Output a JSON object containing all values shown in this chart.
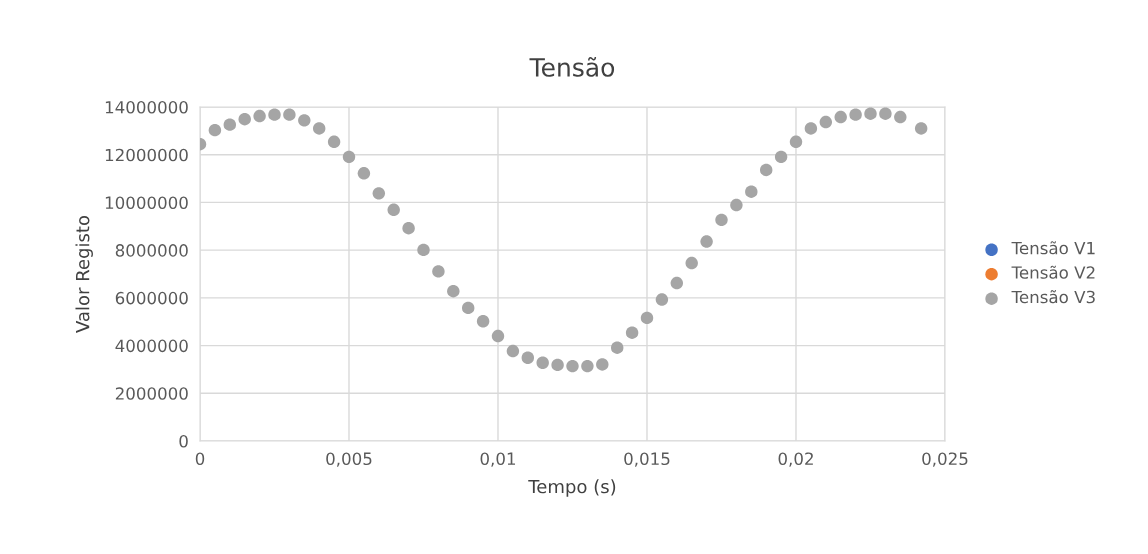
{
  "chart_data": {
    "type": "scatter",
    "title": "Tensão",
    "xlabel": "Tempo (s)",
    "ylabel": "Valor Registo",
    "x": [
      0,
      0.0005,
      0.001,
      0.0015,
      0.002,
      0.0025,
      0.003,
      0.0035,
      0.004,
      0.0045,
      0.005,
      0.0055,
      0.006,
      0.0065,
      0.007,
      0.0075,
      0.008,
      0.0085,
      0.009,
      0.0095,
      0.01,
      0.0105,
      0.011,
      0.0115,
      0.012,
      0.0125,
      0.013,
      0.0135,
      0.014,
      0.0145,
      0.015,
      0.0155,
      0.016,
      0.0165,
      0.017,
      0.0175,
      0.018,
      0.0185,
      0.019,
      0.0195,
      0.02,
      0.0205,
      0.021,
      0.0215,
      0.022,
      0.0225,
      0.023,
      0.0235,
      0.0242
    ],
    "series": [
      {
        "name": "Tensão V1",
        "color": "#4472c4",
        "values": [
          null,
          null,
          null,
          null,
          null,
          null,
          null,
          null,
          null,
          null,
          null,
          null,
          null,
          null,
          null,
          null,
          null,
          null,
          null,
          null,
          null,
          null,
          null,
          null,
          null,
          null,
          null,
          null,
          null,
          null,
          null,
          null,
          null,
          null,
          null,
          null,
          null,
          null,
          null,
          null,
          null,
          null,
          null,
          null,
          null,
          null,
          null,
          null,
          null
        ]
      },
      {
        "name": "Tensão V2",
        "color": "#ed7d31",
        "values": [
          null,
          null,
          null,
          null,
          null,
          null,
          null,
          null,
          null,
          null,
          null,
          null,
          null,
          null,
          null,
          null,
          null,
          null,
          null,
          null,
          null,
          null,
          null,
          null,
          null,
          null,
          null,
          null,
          null,
          null,
          null,
          null,
          null,
          null,
          null,
          null,
          null,
          null,
          null,
          null,
          null,
          null,
          null,
          null,
          null,
          null,
          null,
          null,
          null
        ]
      },
      {
        "name": "Tensão V3",
        "color": "#a5a5a5",
        "values": [
          12440000,
          13030000,
          13260000,
          13490000,
          13620000,
          13680000,
          13680000,
          13440000,
          13100000,
          12540000,
          11910000,
          11220000,
          10380000,
          9690000,
          8920000,
          8010000,
          7110000,
          6280000,
          5580000,
          5020000,
          4400000,
          3770000,
          3490000,
          3280000,
          3190000,
          3140000,
          3140000,
          3210000,
          3910000,
          4540000,
          5160000,
          5930000,
          6620000,
          7460000,
          8360000,
          9270000,
          9890000,
          10450000,
          11360000,
          11910000,
          12540000,
          13100000,
          13370000,
          13580000,
          13680000,
          13720000,
          13720000,
          13580000,
          13100000
        ]
      }
    ],
    "xlim": [
      0,
      0.025
    ],
    "xticks": [
      {
        "value": 0,
        "label": "0"
      },
      {
        "value": 0.005,
        "label": "0,005"
      },
      {
        "value": 0.01,
        "label": "0,01"
      },
      {
        "value": 0.015,
        "label": "0,015"
      },
      {
        "value": 0.02,
        "label": "0,02"
      },
      {
        "value": 0.025,
        "label": "0,025"
      }
    ],
    "ylim": [
      0,
      14000000
    ],
    "yticks": [
      0,
      2000000,
      4000000,
      6000000,
      8000000,
      10000000,
      12000000,
      14000000
    ],
    "grid": true,
    "legend": "right",
    "marker": "circle"
  }
}
